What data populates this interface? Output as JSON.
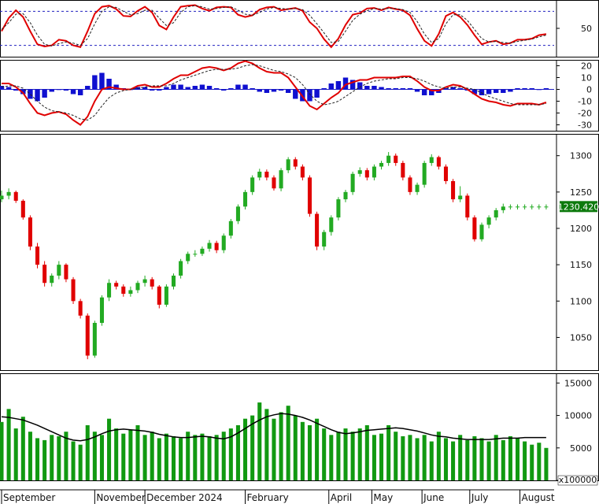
{
  "colors": {
    "up": "#22aa22",
    "down": "#e00000",
    "volume": "#119911",
    "volume_ma": "#000000",
    "oscillator_line": "#e00000",
    "signal_line": "#222222",
    "histogram": "#1010d0",
    "level_line": "#2020c0",
    "badge_bg": "#0d7a0d",
    "frame": "#000000"
  },
  "chart_data": [
    {
      "type": "line",
      "panel": "stochastic",
      "y_ticks": [
        50
      ],
      "ylim": [
        0,
        100
      ],
      "levels": [
        80,
        20
      ],
      "x": [
        0,
        3,
        6,
        9,
        12,
        15,
        18,
        21,
        24,
        27,
        30,
        33,
        36,
        39,
        42,
        45,
        48,
        51,
        54,
        57,
        60,
        63,
        66,
        69,
        72,
        75,
        78,
        81,
        84,
        87,
        90,
        93,
        96,
        99,
        102,
        105,
        108,
        111,
        114,
        117,
        120,
        123,
        126,
        129,
        132,
        135,
        138,
        141,
        144,
        147,
        150,
        153,
        156,
        159,
        162,
        165,
        168,
        171,
        174,
        177,
        180,
        183,
        186,
        189,
        192,
        195,
        198,
        201,
        204,
        207,
        210,
        213,
        216,
        219,
        222,
        225,
        228
      ],
      "series": [
        {
          "role": "k",
          "values": [
            45,
            68,
            82,
            70,
            45,
            22,
            18,
            20,
            30,
            28,
            20,
            17,
            45,
            76,
            88,
            90,
            84,
            72,
            71,
            81,
            88,
            78,
            55,
            48,
            70,
            88,
            90,
            91,
            85,
            81,
            87,
            88,
            87,
            74,
            70,
            73,
            83,
            87,
            88,
            82,
            84,
            86,
            81,
            61,
            50,
            31,
            17,
            32,
            56,
            74,
            77,
            85,
            86,
            82,
            87,
            84,
            82,
            73,
            49,
            28,
            19,
            40,
            72,
            78,
            70,
            56,
            38,
            22,
            26,
            28,
            22,
            24,
            30,
            30,
            32,
            38,
            40
          ]
        },
        {
          "role": "d",
          "values": [
            48,
            60,
            75,
            76,
            60,
            38,
            22,
            19,
            23,
            26,
            24,
            20,
            32,
            58,
            80,
            88,
            87,
            80,
            74,
            76,
            82,
            82,
            68,
            55,
            60,
            78,
            88,
            90,
            88,
            84,
            85,
            87,
            88,
            82,
            75,
            73,
            78,
            84,
            87,
            85,
            84,
            85,
            83,
            73,
            58,
            42,
            25,
            27,
            45,
            64,
            75,
            81,
            85,
            84,
            85,
            85,
            83,
            78,
            62,
            40,
            25,
            32,
            58,
            74,
            74,
            64,
            48,
            32,
            26,
            27,
            25,
            24,
            27,
            29,
            31,
            35,
            38
          ]
        }
      ]
    },
    {
      "type": "line",
      "panel": "macd",
      "y_ticks": [
        20,
        10,
        0,
        -10,
        -20,
        -30
      ],
      "ylim": [
        -35,
        25
      ],
      "x": [
        0,
        3,
        6,
        9,
        12,
        15,
        18,
        21,
        24,
        27,
        30,
        33,
        36,
        39,
        42,
        45,
        48,
        51,
        54,
        57,
        60,
        63,
        66,
        69,
        72,
        75,
        78,
        81,
        84,
        87,
        90,
        93,
        96,
        99,
        102,
        105,
        108,
        111,
        114,
        117,
        120,
        123,
        126,
        129,
        132,
        135,
        138,
        141,
        144,
        147,
        150,
        153,
        156,
        159,
        162,
        165,
        168,
        171,
        174,
        177,
        180,
        183,
        186,
        189,
        192,
        195,
        198,
        201,
        204,
        207,
        210,
        213,
        216,
        219,
        222,
        225,
        228
      ],
      "series": [
        {
          "role": "macd",
          "values": [
            5,
            5,
            2,
            -3,
            -12,
            -20,
            -22,
            -20,
            -19,
            -21,
            -26,
            -30,
            -23,
            -10,
            0,
            2,
            1,
            0,
            0,
            3,
            4,
            2,
            2,
            5,
            9,
            12,
            12,
            15,
            18,
            19,
            18,
            16,
            18,
            22,
            24,
            22,
            18,
            15,
            14,
            14,
            10,
            2,
            -6,
            -14,
            -17,
            -12,
            -7,
            -3,
            4,
            6,
            8,
            8,
            10,
            10,
            10,
            10,
            11,
            11,
            7,
            2,
            -1,
            -1,
            2,
            4,
            3,
            0,
            -4,
            -8,
            -10,
            -11,
            -13,
            -14,
            -12,
            -12,
            -12,
            -13,
            -11
          ]
        },
        {
          "role": "signal",
          "values": [
            2,
            3,
            3,
            1,
            -4,
            -10,
            -15,
            -18,
            -19,
            -20,
            -22,
            -25,
            -26,
            -22,
            -14,
            -7,
            -3,
            -1,
            0,
            1,
            2,
            3,
            3,
            3,
            5,
            8,
            10,
            12,
            14,
            16,
            17,
            17,
            17,
            18,
            20,
            21,
            20,
            18,
            16,
            15,
            13,
            10,
            4,
            -4,
            -10,
            -13,
            -12,
            -10,
            -6,
            -2,
            2,
            5,
            7,
            8,
            9,
            9,
            10,
            10,
            9,
            7,
            4,
            2,
            1,
            2,
            2,
            1,
            0,
            -3,
            -6,
            -8,
            -10,
            -12,
            -13,
            -13,
            -13,
            -13,
            -12
          ]
        }
      ],
      "histogram": [
        3,
        2,
        -1,
        -4,
        -8,
        -10,
        -7,
        -2,
        0,
        -1,
        -4,
        -5,
        3,
        12,
        14,
        9,
        4,
        1,
        0,
        2,
        2,
        -1,
        -1,
        2,
        4,
        4,
        2,
        3,
        4,
        3,
        1,
        -1,
        1,
        4,
        4,
        1,
        -2,
        -3,
        -2,
        -1,
        -3,
        -8,
        -10,
        -10,
        -7,
        1,
        5,
        7,
        10,
        8,
        6,
        3,
        3,
        2,
        1,
        1,
        1,
        1,
        -2,
        -5,
        -5,
        -3,
        1,
        2,
        1,
        -1,
        -4,
        -5,
        -4,
        -3,
        -3,
        -2,
        1,
        1,
        1,
        0,
        1
      ]
    },
    {
      "type": "candlestick",
      "panel": "price",
      "y_ticks": [
        1300,
        1250,
        1200,
        1150,
        1100,
        1050
      ],
      "ylim": [
        1005,
        1330
      ],
      "last_price_label": "1230.420",
      "x": [
        0,
        3,
        6,
        9,
        12,
        15,
        18,
        21,
        24,
        27,
        30,
        33,
        36,
        39,
        42,
        45,
        48,
        51,
        54,
        57,
        60,
        63,
        66,
        69,
        72,
        75,
        78,
        81,
        84,
        87,
        90,
        93,
        96,
        99,
        102,
        105,
        108,
        111,
        114,
        117,
        120,
        123,
        126,
        129,
        132,
        135,
        138,
        141,
        144,
        147,
        150,
        153,
        156,
        159,
        162,
        165,
        168,
        171,
        174,
        177,
        180,
        183,
        186,
        189,
        192,
        195,
        198,
        201,
        204,
        207,
        210,
        213,
        216,
        219,
        222,
        225,
        228
      ],
      "close": [
        1245,
        1250,
        1238,
        1215,
        1175,
        1150,
        1125,
        1135,
        1150,
        1130,
        1100,
        1080,
        1025,
        1070,
        1105,
        1125,
        1120,
        1110,
        1115,
        1125,
        1130,
        1120,
        1095,
        1120,
        1135,
        1155,
        1165,
        1165,
        1172,
        1180,
        1170,
        1190,
        1210,
        1230,
        1250,
        1270,
        1278,
        1270,
        1255,
        1280,
        1295,
        1285,
        1270,
        1220,
        1175,
        1195,
        1215,
        1240,
        1250,
        1275,
        1280,
        1270,
        1285,
        1290,
        1300,
        1290,
        1270,
        1250,
        1260,
        1290,
        1298,
        1285,
        1265,
        1240,
        1245,
        1215,
        1185,
        1205,
        1215,
        1225,
        1230,
        1230,
        1230,
        1230,
        1230,
        1230,
        1230
      ],
      "open": [
        1240,
        1245,
        1250,
        1238,
        1215,
        1175,
        1150,
        1125,
        1135,
        1150,
        1130,
        1100,
        1080,
        1025,
        1070,
        1105,
        1125,
        1120,
        1110,
        1115,
        1125,
        1130,
        1120,
        1095,
        1120,
        1135,
        1155,
        1165,
        1165,
        1172,
        1180,
        1170,
        1190,
        1210,
        1230,
        1250,
        1270,
        1278,
        1270,
        1255,
        1280,
        1295,
        1285,
        1270,
        1220,
        1175,
        1195,
        1215,
        1240,
        1250,
        1275,
        1280,
        1270,
        1285,
        1290,
        1300,
        1290,
        1270,
        1250,
        1260,
        1290,
        1298,
        1285,
        1265,
        1240,
        1245,
        1215,
        1185,
        1205,
        1215,
        1225,
        1230,
        1230,
        1230,
        1230,
        1230,
        1230
      ],
      "high": [
        1252,
        1255,
        1252,
        1240,
        1218,
        1180,
        1155,
        1138,
        1155,
        1152,
        1133,
        1103,
        1083,
        1073,
        1108,
        1130,
        1128,
        1123,
        1120,
        1128,
        1135,
        1133,
        1122,
        1123,
        1138,
        1158,
        1168,
        1170,
        1175,
        1184,
        1183,
        1193,
        1213,
        1233,
        1253,
        1273,
        1282,
        1281,
        1273,
        1283,
        1298,
        1298,
        1288,
        1273,
        1223,
        1198,
        1218,
        1243,
        1253,
        1278,
        1284,
        1283,
        1288,
        1293,
        1305,
        1303,
        1293,
        1273,
        1263,
        1293,
        1302,
        1300,
        1288,
        1268,
        1258,
        1248,
        1218,
        1208,
        1218,
        1228,
        1234,
        1233,
        1233,
        1233,
        1233,
        1233,
        1233
      ],
      "low": [
        1236,
        1240,
        1235,
        1212,
        1170,
        1145,
        1120,
        1120,
        1130,
        1126,
        1096,
        1076,
        1020,
        1022,
        1066,
        1100,
        1116,
        1106,
        1106,
        1111,
        1120,
        1116,
        1090,
        1092,
        1116,
        1131,
        1151,
        1161,
        1162,
        1168,
        1166,
        1166,
        1186,
        1206,
        1226,
        1246,
        1266,
        1266,
        1252,
        1251,
        1276,
        1281,
        1266,
        1216,
        1170,
        1170,
        1190,
        1211,
        1236,
        1246,
        1271,
        1266,
        1266,
        1281,
        1286,
        1286,
        1266,
        1246,
        1246,
        1256,
        1286,
        1281,
        1261,
        1236,
        1236,
        1211,
        1182,
        1182,
        1200,
        1211,
        1221,
        1226,
        1226,
        1226,
        1226,
        1226,
        1226
      ]
    },
    {
      "type": "bar",
      "panel": "volume",
      "y_ticks": [
        15000,
        10000,
        5000,
        0
      ],
      "ylim": [
        0,
        16500
      ],
      "unit_label": "x100000",
      "x": [
        0,
        3,
        6,
        9,
        12,
        15,
        18,
        21,
        24,
        27,
        30,
        33,
        36,
        39,
        42,
        45,
        48,
        51,
        54,
        57,
        60,
        63,
        66,
        69,
        72,
        75,
        78,
        81,
        84,
        87,
        90,
        93,
        96,
        99,
        102,
        105,
        108,
        111,
        114,
        117,
        120,
        123,
        126,
        129,
        132,
        135,
        138,
        141,
        144,
        147,
        150,
        153,
        156,
        159,
        162,
        165,
        168,
        171,
        174,
        177,
        180,
        183,
        186,
        189,
        192,
        195,
        198,
        201,
        204,
        207,
        210,
        213,
        216,
        219,
        222,
        225,
        228
      ],
      "values": [
        9000,
        11000,
        8000,
        9800,
        7500,
        6500,
        6200,
        7000,
        6800,
        7500,
        6000,
        5500,
        8500,
        7500,
        7000,
        9500,
        8000,
        7200,
        7800,
        8500,
        7000,
        7500,
        6500,
        7200,
        6800,
        6500,
        7500,
        7000,
        7200,
        6800,
        7000,
        7500,
        8000,
        8500,
        9500,
        10000,
        12000,
        11000,
        9500,
        10500,
        11500,
        10000,
        9000,
        8500,
        9500,
        8000,
        7000,
        7500,
        8000,
        7500,
        8000,
        8500,
        7000,
        7200,
        8500,
        7500,
        6800,
        7000,
        6500,
        7000,
        6000,
        7500,
        6500,
        6000,
        7000,
        6200,
        6800,
        6500,
        6000,
        7000,
        6200,
        6800,
        6500,
        6000,
        5500,
        5800,
        5000
      ],
      "ma": [
        9800,
        9700,
        9500,
        9300,
        8900,
        8500,
        8000,
        7500,
        7000,
        6500,
        6200,
        6100,
        6300,
        6700,
        7200,
        7600,
        7800,
        7900,
        7800,
        7700,
        7600,
        7400,
        7100,
        6900,
        6700,
        6600,
        6600,
        6700,
        6800,
        6700,
        6500,
        6400,
        6700,
        7300,
        8000,
        8700,
        9300,
        9800,
        10100,
        10300,
        10200,
        10000,
        9700,
        9300,
        8800,
        8300,
        7800,
        7400,
        7200,
        7300,
        7500,
        7700,
        7800,
        7900,
        8000,
        8100,
        8000,
        7800,
        7600,
        7300,
        7000,
        6800,
        6700,
        6500,
        6400,
        6300,
        6300,
        6300,
        6300,
        6400,
        6500,
        6500,
        6500,
        6600,
        6600,
        6600,
        6600
      ]
    }
  ],
  "x_axis": {
    "months": [
      {
        "label": "September",
        "x": 0
      },
      {
        "label": "November",
        "x": 39
      },
      {
        "label": "December 2024",
        "x": 60
      },
      {
        "label": "February",
        "x": 102
      },
      {
        "label": "April",
        "x": 137
      },
      {
        "label": "May",
        "x": 155
      },
      {
        "label": "June",
        "x": 176
      },
      {
        "label": "July",
        "x": 196
      },
      {
        "label": "August",
        "x": 217
      }
    ]
  }
}
